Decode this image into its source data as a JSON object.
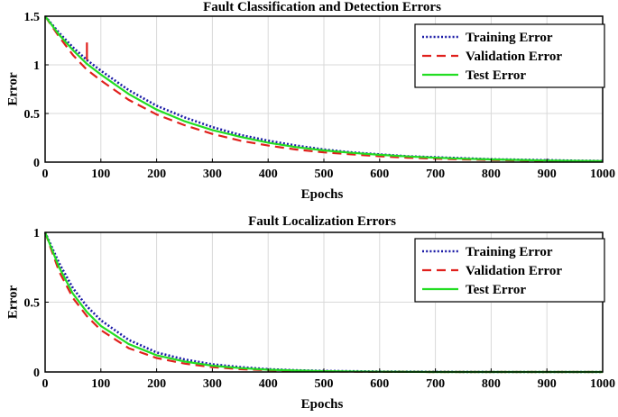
{
  "chart_data": [
    {
      "type": "line",
      "title": "Fault Classification and Detection Errors",
      "xlabel": "Epochs",
      "ylabel": "Error",
      "xlim": [
        0,
        1000
      ],
      "ylim": [
        0,
        1.5
      ],
      "xticks": [
        0,
        100,
        200,
        300,
        400,
        500,
        600,
        700,
        800,
        900,
        1000
      ],
      "yticks": [
        0,
        0.5,
        1,
        1.5
      ],
      "ytick_labels": [
        "0",
        "0.5",
        "1",
        "1.5"
      ],
      "grid": true,
      "legend_position": "top-right",
      "x": [
        0,
        25,
        50,
        75,
        100,
        150,
        200,
        250,
        300,
        350,
        400,
        450,
        500,
        550,
        600,
        650,
        700,
        750,
        800,
        850,
        900,
        950,
        1000
      ],
      "series": [
        {
          "name": "Training Error",
          "color": "#1a1aa6",
          "dash": "dotted",
          "values": [
            1.5,
            1.33,
            1.18,
            1.05,
            0.94,
            0.74,
            0.58,
            0.46,
            0.36,
            0.28,
            0.22,
            0.17,
            0.13,
            0.1,
            0.08,
            0.06,
            0.05,
            0.04,
            0.03,
            0.025,
            0.02,
            0.015,
            0.012
          ]
        },
        {
          "name": "Validation Error",
          "color": "#e0201c",
          "dash": "dashed",
          "values": [
            1.5,
            1.29,
            1.1,
            0.95,
            0.84,
            0.64,
            0.49,
            0.38,
            0.29,
            0.22,
            0.17,
            0.13,
            0.1,
            0.08,
            0.06,
            0.045,
            0.035,
            0.028,
            0.022,
            0.017,
            0.013,
            0.01,
            0.008
          ]
        },
        {
          "name": "Test Error",
          "color": "#22dd22",
          "dash": "solid",
          "values": [
            1.5,
            1.31,
            1.15,
            1.01,
            0.9,
            0.7,
            0.54,
            0.42,
            0.33,
            0.26,
            0.2,
            0.155,
            0.12,
            0.095,
            0.075,
            0.058,
            0.045,
            0.035,
            0.028,
            0.022,
            0.017,
            0.013,
            0.01
          ]
        }
      ],
      "annotations": [
        {
          "type": "spike",
          "series": "Validation Error",
          "x": 75,
          "y_from": 1.05,
          "y_to": 1.23
        }
      ]
    },
    {
      "type": "line",
      "title": "Fault Localization Errors",
      "xlabel": "Epochs",
      "ylabel": "Error",
      "xlim": [
        0,
        1000
      ],
      "ylim": [
        0,
        1
      ],
      "xticks": [
        0,
        100,
        200,
        300,
        400,
        500,
        600,
        700,
        800,
        900,
        1000
      ],
      "yticks": [
        0,
        0.5,
        1
      ],
      "ytick_labels": [
        "0",
        "0.5",
        "1"
      ],
      "grid": true,
      "legend_position": "top-right",
      "x": [
        0,
        25,
        50,
        75,
        100,
        150,
        200,
        250,
        300,
        350,
        400,
        450,
        500,
        600,
        700,
        800,
        900,
        1000
      ],
      "series": [
        {
          "name": "Training Error",
          "color": "#1a1aa6",
          "dash": "dotted",
          "values": [
            1.0,
            0.78,
            0.6,
            0.47,
            0.37,
            0.23,
            0.14,
            0.09,
            0.055,
            0.035,
            0.02,
            0.012,
            0.008,
            0.003,
            0.001,
            0.0,
            0.0,
            0.0
          ]
        },
        {
          "name": "Validation Error",
          "color": "#e0201c",
          "dash": "dashed",
          "values": [
            1.0,
            0.72,
            0.53,
            0.4,
            0.3,
            0.17,
            0.1,
            0.06,
            0.035,
            0.02,
            0.012,
            0.007,
            0.004,
            0.001,
            0.0,
            0.0,
            0.0,
            0.0
          ]
        },
        {
          "name": "Test Error",
          "color": "#22dd22",
          "dash": "solid",
          "values": [
            1.0,
            0.75,
            0.56,
            0.43,
            0.33,
            0.2,
            0.12,
            0.075,
            0.045,
            0.028,
            0.016,
            0.01,
            0.006,
            0.002,
            0.0,
            0.0,
            0.0,
            0.0
          ]
        }
      ]
    }
  ]
}
